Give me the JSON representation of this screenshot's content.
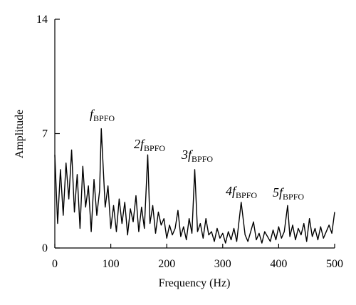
{
  "chart_data": {
    "type": "line",
    "xlabel": "Frequency (Hz)",
    "ylabel": "Amplitude",
    "x": [
      0,
      5,
      10,
      15,
      20,
      25,
      30,
      35,
      40,
      45,
      50,
      55,
      60,
      65,
      70,
      75,
      80,
      83,
      90,
      95,
      100,
      105,
      110,
      115,
      120,
      125,
      130,
      135,
      140,
      145,
      150,
      155,
      160,
      166,
      170,
      175,
      180,
      185,
      190,
      195,
      200,
      205,
      210,
      215,
      220,
      225,
      230,
      235,
      240,
      245,
      250,
      255,
      260,
      265,
      270,
      275,
      280,
      285,
      290,
      295,
      300,
      305,
      310,
      315,
      320,
      325,
      333,
      340,
      345,
      350,
      355,
      360,
      365,
      370,
      375,
      380,
      385,
      390,
      395,
      400,
      405,
      410,
      416,
      420,
      425,
      430,
      435,
      440,
      445,
      450,
      455,
      460,
      465,
      470,
      475,
      480,
      485,
      490,
      495,
      500
    ],
    "series": [
      {
        "color": "#000000",
        "values": [
          5.7,
          1.5,
          4.8,
          2.0,
          5.2,
          3.0,
          6.0,
          2.2,
          4.5,
          1.2,
          5.0,
          2.5,
          3.8,
          1.0,
          4.2,
          2.0,
          3.5,
          7.3,
          2.5,
          3.8,
          1.2,
          2.6,
          1.0,
          3.0,
          1.5,
          2.8,
          0.8,
          2.4,
          1.6,
          3.2,
          1.0,
          2.5,
          1.2,
          5.7,
          1.5,
          2.6,
          0.9,
          2.2,
          1.4,
          1.8,
          0.6,
          1.4,
          0.8,
          1.2,
          2.3,
          0.7,
          1.3,
          0.5,
          1.8,
          0.9,
          4.8,
          1.0,
          1.5,
          0.6,
          1.8,
          0.8,
          1.0,
          0.4,
          1.2,
          0.6,
          0.9,
          0.3,
          1.0,
          0.5,
          1.2,
          0.4,
          2.8,
          0.8,
          0.4,
          1.0,
          1.6,
          0.5,
          0.9,
          0.3,
          1.0,
          0.7,
          0.4,
          1.1,
          0.5,
          1.3,
          0.6,
          1.0,
          2.6,
          0.7,
          1.4,
          0.5,
          1.2,
          0.8,
          1.5,
          0.4,
          1.8,
          0.7,
          1.2,
          0.5,
          1.3,
          0.6,
          1.0,
          1.4,
          0.9,
          2.2
        ]
      }
    ],
    "annotations": [
      {
        "text": "f",
        "sub": "BPFO"
      },
      {
        "text": "2f",
        "sub": "BPFO"
      },
      {
        "text": "3f",
        "sub": "BPFO"
      },
      {
        "text": "4f",
        "sub": "BPFO"
      },
      {
        "text": "5f",
        "sub": "BPFO"
      }
    ],
    "xlim": [
      0,
      500
    ],
    "xticks": [
      0,
      100,
      200,
      300,
      400,
      500
    ],
    "ylim": [
      0,
      14
    ],
    "yticks": [
      0,
      7,
      14
    ]
  }
}
